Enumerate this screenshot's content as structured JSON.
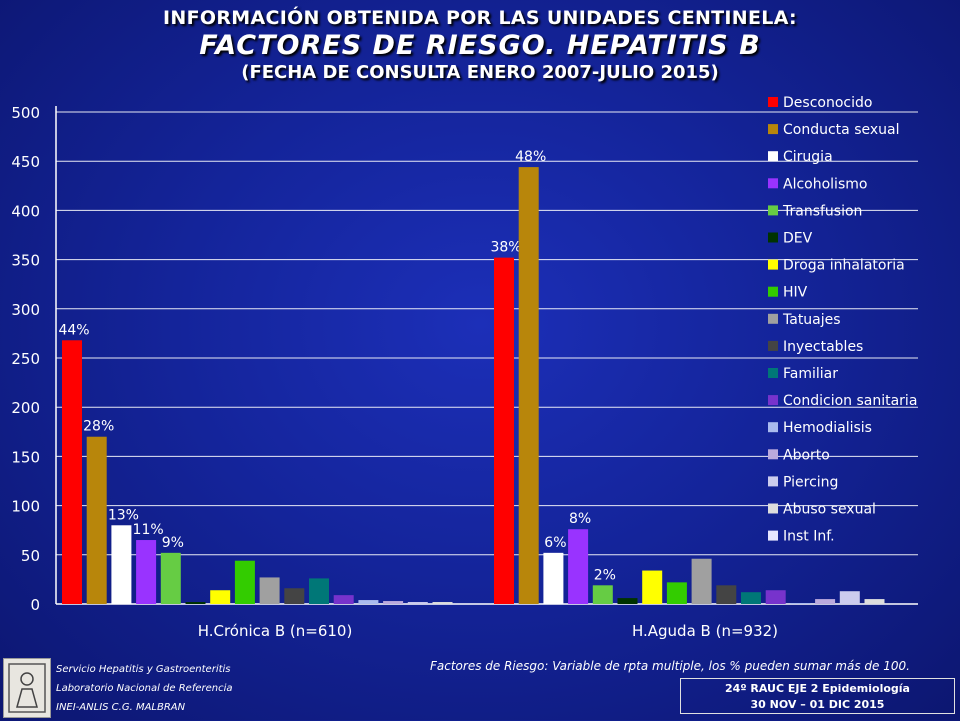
{
  "header": {
    "line1": "INFORMACIÓN OBTENIDA POR LAS UNIDADES CENTINELA:",
    "line2": "FACTORES DE  RIESGO. HEPATITIS B",
    "line3": "(FECHA DE CONSULTA ENERO 2007-JULIO 2015)"
  },
  "chart_data": {
    "type": "bar",
    "title": "FACTORES DE  RIESGO. HEPATITIS B",
    "xlabel": "",
    "ylabel": "",
    "ylim": [
      0,
      500
    ],
    "yticks": [
      0,
      50,
      100,
      150,
      200,
      250,
      300,
      350,
      400,
      450,
      500
    ],
    "grid": true,
    "legend_position": "right",
    "categories": [
      "H.Crónica B (n=610)",
      "H.Aguda B (n=932)"
    ],
    "series": [
      {
        "name": "Desconocido",
        "color": "#ff0000",
        "values": [
          268,
          352
        ],
        "labels": [
          "44%",
          "38%"
        ]
      },
      {
        "name": "Conducta sexual",
        "color": "#b8860b",
        "values": [
          170,
          444
        ],
        "labels": [
          "28%",
          "48%"
        ]
      },
      {
        "name": "Cirugia",
        "color": "#ffffff",
        "values": [
          80,
          52
        ],
        "labels": [
          "13%",
          "6%"
        ]
      },
      {
        "name": "Alcoholismo",
        "color": "#9933ff",
        "values": [
          65,
          76
        ],
        "labels": [
          "11%",
          "8%"
        ]
      },
      {
        "name": "Transfusion",
        "color": "#66cc44",
        "values": [
          52,
          19
        ],
        "labels": [
          "9%",
          "2%"
        ]
      },
      {
        "name": "DEV",
        "color": "#003300",
        "values": [
          2,
          6
        ],
        "labels": [
          "",
          ""
        ]
      },
      {
        "name": "Droga inhalatoria",
        "color": "#ffff00",
        "values": [
          14,
          34
        ],
        "labels": [
          "",
          ""
        ]
      },
      {
        "name": "HIV",
        "color": "#33cc00",
        "values": [
          44,
          22
        ],
        "labels": [
          "",
          ""
        ]
      },
      {
        "name": "Tatuajes",
        "color": "#a0a0a0",
        "values": [
          27,
          46
        ],
        "labels": [
          "",
          ""
        ]
      },
      {
        "name": "Inyectables",
        "color": "#444444",
        "values": [
          16,
          19
        ],
        "labels": [
          "",
          ""
        ]
      },
      {
        "name": "Familiar",
        "color": "#007777",
        "values": [
          26,
          12
        ],
        "labels": [
          "",
          ""
        ]
      },
      {
        "name": "Condicion sanitaria",
        "color": "#7733cc",
        "values": [
          9,
          14
        ],
        "labels": [
          "",
          ""
        ]
      },
      {
        "name": "Hemodialisis",
        "color": "#aabbee",
        "values": [
          4,
          1
        ],
        "labels": [
          "",
          ""
        ]
      },
      {
        "name": "Aborto",
        "color": "#bbaadd",
        "values": [
          3,
          5
        ],
        "labels": [
          "",
          ""
        ]
      },
      {
        "name": "Piercing",
        "color": "#ccccee",
        "values": [
          2,
          13
        ],
        "labels": [
          "",
          ""
        ]
      },
      {
        "name": "Abuso sexual",
        "color": "#dddddd",
        "values": [
          2,
          5
        ],
        "labels": [
          "",
          ""
        ]
      },
      {
        "name": "Inst Inf.",
        "color": "#e6e6ff",
        "values": [
          0,
          0
        ],
        "labels": [
          "",
          ""
        ]
      }
    ]
  },
  "footer": {
    "left_lines": [
      "Servicio Hepatitis y Gastroenteritis",
      "Laboratorio Nacional de Referencia",
      "INEI-ANLIS C.G. MALBRAN"
    ],
    "note": "Factores de Riesgo: Variable de rpta multiple, los % pueden sumar más de 100.",
    "conference_line1": "24º RAUC  EJE 2  Epidemiología",
    "conference_line2": "30 NOV – 01 DIC  2015"
  }
}
